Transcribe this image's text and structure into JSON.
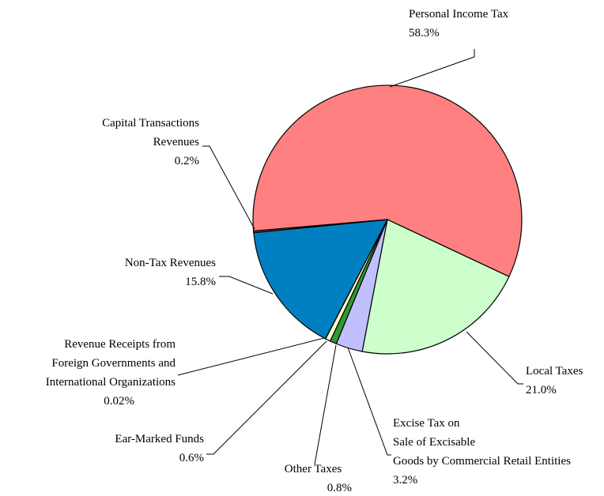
{
  "chart_data": {
    "type": "pie",
    "categories": [
      "Personal Income Tax",
      "Local Taxes",
      "Excise Tax on Sale of Excisable Goods by Commercial Retail Entities",
      "Other Taxes",
      "Ear-Marked Funds",
      "Revenue Receipts from Foreign Governments and International Organizations",
      "Non-Tax Revenues",
      "Capital Transactions Revenues"
    ],
    "values": [
      58.3,
      21.0,
      3.2,
      0.8,
      0.6,
      0.02,
      15.8,
      0.2
    ],
    "value_labels": [
      "58.3%",
      "21.0%",
      "3.2%",
      "0.8%",
      "0.6%",
      "0.02%",
      "15.8%",
      "0.2%"
    ],
    "colors": [
      "#ff8080",
      "#ccffcc",
      "#c0c0ff",
      "#339933",
      "#ffffcc",
      "#ffffff",
      "#0080c0",
      "#cc3333"
    ]
  }
}
